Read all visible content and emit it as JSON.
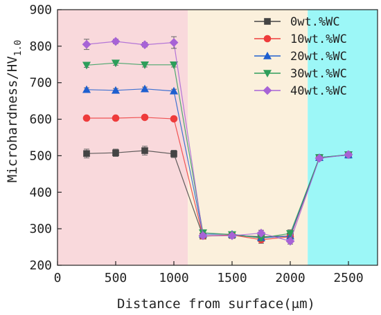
{
  "chart_data": {
    "type": "line",
    "xlabel": "Distance from surface(μm)",
    "ylabel_main": "Microhardness/HV",
    "ylabel_sub": "1.0",
    "xlim": [
      0,
      2750
    ],
    "ylim": [
      200,
      900
    ],
    "xticks": [
      0,
      500,
      1000,
      1500,
      2000,
      2500
    ],
    "yticks": [
      200,
      300,
      400,
      500,
      600,
      700,
      800,
      900
    ],
    "regions": [
      {
        "x0": 0,
        "x1": 1120,
        "color": "#f9d9dc"
      },
      {
        "x0": 1120,
        "x1": 2150,
        "color": "#fbf0dc"
      },
      {
        "x0": 2150,
        "x1": 2750,
        "color": "#9cf7f7"
      }
    ],
    "legend_position": "top-right",
    "x": [
      250,
      500,
      750,
      1000,
      1250,
      1500,
      1750,
      2000,
      2250,
      2500
    ],
    "series": [
      {
        "name": "0wt.%WC",
        "color": "#444444",
        "marker": "square",
        "values": [
          506,
          508,
          514,
          505,
          280,
          282,
          278,
          280,
          495,
          502
        ],
        "errors": [
          12,
          10,
          12,
          10,
          8,
          8,
          10,
          12,
          8,
          8
        ]
      },
      {
        "name": "10wt.%WC",
        "color": "#ee3b3b",
        "marker": "circle",
        "values": [
          603,
          603,
          605,
          601,
          280,
          283,
          270,
          278,
          494,
          503
        ],
        "errors": [
          5,
          5,
          5,
          5,
          6,
          6,
          10,
          8,
          6,
          6
        ]
      },
      {
        "name": "20wt.%WC",
        "color": "#1e5fcf",
        "marker": "triangle-up",
        "values": [
          681,
          679,
          683,
          677,
          285,
          285,
          275,
          280,
          495,
          502
        ],
        "errors": [
          5,
          5,
          5,
          5,
          6,
          6,
          8,
          8,
          6,
          6
        ]
      },
      {
        "name": "30wt.%WC",
        "color": "#2e9e5b",
        "marker": "triangle-down",
        "values": [
          748,
          754,
          749,
          749,
          289,
          284,
          275,
          287,
          495,
          503
        ],
        "errors": [
          6,
          6,
          6,
          6,
          6,
          6,
          8,
          10,
          6,
          6
        ]
      },
      {
        "name": "40wt.%WC",
        "color": "#a763d6",
        "marker": "diamond",
        "values": [
          805,
          813,
          804,
          810,
          281,
          281,
          288,
          266,
          493,
          503
        ],
        "errors": [
          14,
          6,
          6,
          16,
          6,
          6,
          8,
          8,
          6,
          6
        ]
      }
    ]
  }
}
